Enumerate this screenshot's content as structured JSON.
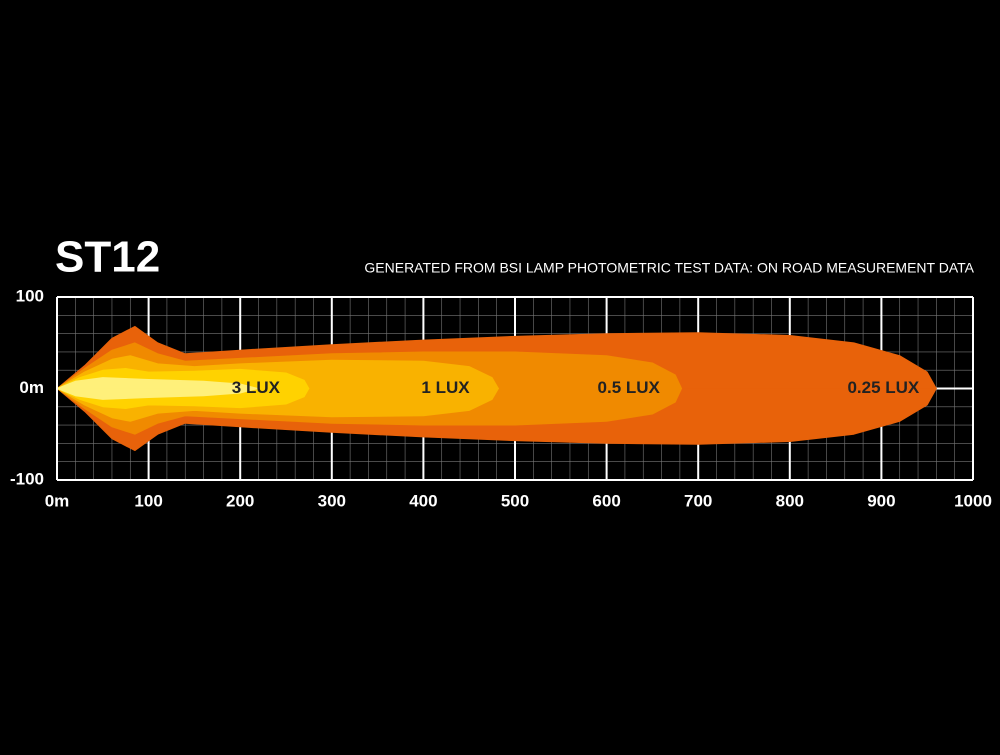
{
  "chart_data": {
    "type": "beam",
    "title": "ST12",
    "subtitle": "GENERATED FROM BSI LAMP PHOTOMETRIC TEST DATA: ON ROAD MEASUREMENT DATA",
    "xlim": [
      0,
      1000
    ],
    "xticks": [
      {
        "value": 0,
        "label": "0m"
      },
      100,
      200,
      300,
      400,
      500,
      600,
      700,
      800,
      900,
      1000
    ],
    "ylim": [
      -100,
      100
    ],
    "yticks": [
      100,
      {
        "value": 0,
        "label": "0m"
      },
      -100
    ],
    "grid": true,
    "series": [
      {
        "name": "0.25 LUX",
        "color": "#e8620a",
        "x": [
          0,
          30,
          60,
          85,
          110,
          140,
          200,
          300,
          400,
          500,
          600,
          700,
          800,
          870,
          920,
          950,
          960
        ],
        "values": [
          0,
          25,
          55,
          68,
          50,
          38,
          42,
          48,
          53,
          57,
          60,
          61,
          58,
          50,
          36,
          18,
          0
        ]
      },
      {
        "name": "0.5 LUX",
        "color": "#f08a00",
        "x": [
          0,
          30,
          60,
          85,
          110,
          140,
          200,
          300,
          400,
          500,
          600,
          650,
          675,
          682
        ],
        "values": [
          0,
          22,
          42,
          50,
          38,
          30,
          33,
          38,
          40,
          40,
          36,
          28,
          15,
          0
        ]
      },
      {
        "name": "1 LUX",
        "color": "#f9b200",
        "x": [
          0,
          30,
          60,
          80,
          110,
          150,
          200,
          300,
          400,
          450,
          475,
          482
        ],
        "values": [
          0,
          18,
          32,
          36,
          27,
          24,
          27,
          31,
          30,
          24,
          12,
          0
        ]
      },
      {
        "name": "3 LUX",
        "color": "#ffd200",
        "x": [
          0,
          25,
          50,
          75,
          100,
          150,
          200,
          250,
          270,
          275
        ],
        "values": [
          0,
          12,
          20,
          22,
          18,
          19,
          21,
          17,
          9,
          0
        ]
      },
      {
        "color": "#fff07a",
        "x": [
          0,
          20,
          50,
          100,
          160,
          200,
          220
        ],
        "values": [
          0,
          8,
          12,
          10,
          8,
          5,
          0
        ]
      }
    ]
  }
}
